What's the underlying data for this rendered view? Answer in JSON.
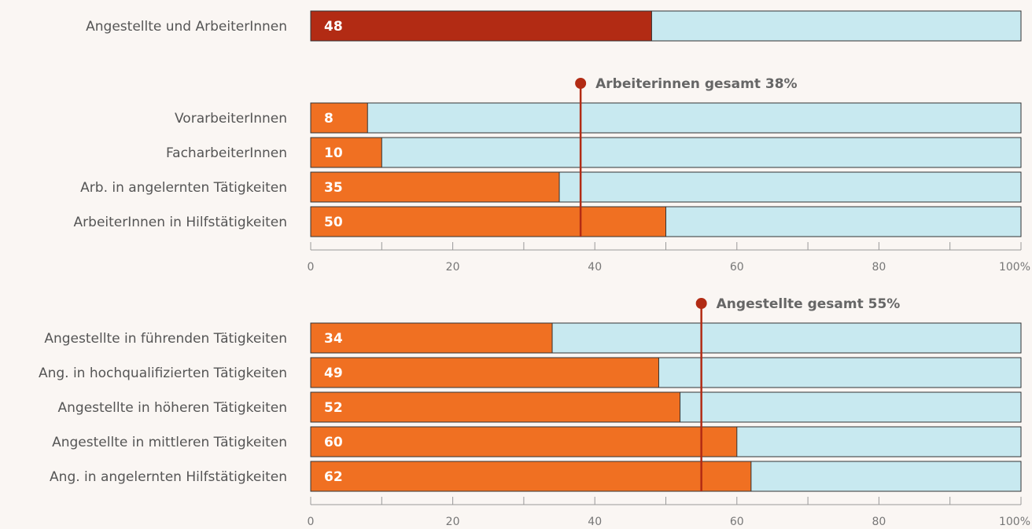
{
  "chart_data": [
    {
      "type": "bar",
      "categories": [
        "Angestellte und ArbeiterInnen"
      ],
      "values": [
        48
      ],
      "color": "#b22b14",
      "track_color": "#c8e9f0",
      "xlim": [
        0,
        100
      ]
    },
    {
      "type": "bar",
      "categories": [
        "VorarbeiterInnen",
        "FacharbeiterInnen",
        "Arb. in angelernten Tätigkeiten",
        "ArbeiterInnen in Hilfstätigkeiten"
      ],
      "values": [
        8,
        10,
        35,
        50
      ],
      "color": "#f07022",
      "track_color": "#c8e9f0",
      "xlim": [
        0,
        100
      ],
      "xticks": [
        0,
        20,
        40,
        60,
        80,
        {
          "value": 100,
          "label": "100%"
        }
      ],
      "minor_ticks": [
        10,
        30,
        50,
        70,
        90
      ],
      "reference": {
        "value": 38,
        "label": "Arbeiterinnen gesamt 38%",
        "color": "#b22b14"
      }
    },
    {
      "type": "bar",
      "categories": [
        "Angestellte in führenden Tätigkeiten",
        "Ang. in hochqualifizierten Tätigkeiten",
        "Angestellte in höheren Tätigkeiten",
        "Angestellte in mittleren Tätigkeiten",
        "Ang. in angelernten Hilfstätigkeiten"
      ],
      "values": [
        34,
        49,
        52,
        60,
        62
      ],
      "color": "#f07022",
      "track_color": "#c8e9f0",
      "xlim": [
        0,
        100
      ],
      "xticks": [
        0,
        20,
        40,
        60,
        80,
        {
          "value": 100,
          "label": "100%"
        }
      ],
      "minor_ticks": [
        10,
        30,
        50,
        70,
        90
      ],
      "reference": {
        "value": 55,
        "label": "Angestellte gesamt 55%",
        "color": "#b22b14"
      }
    }
  ]
}
